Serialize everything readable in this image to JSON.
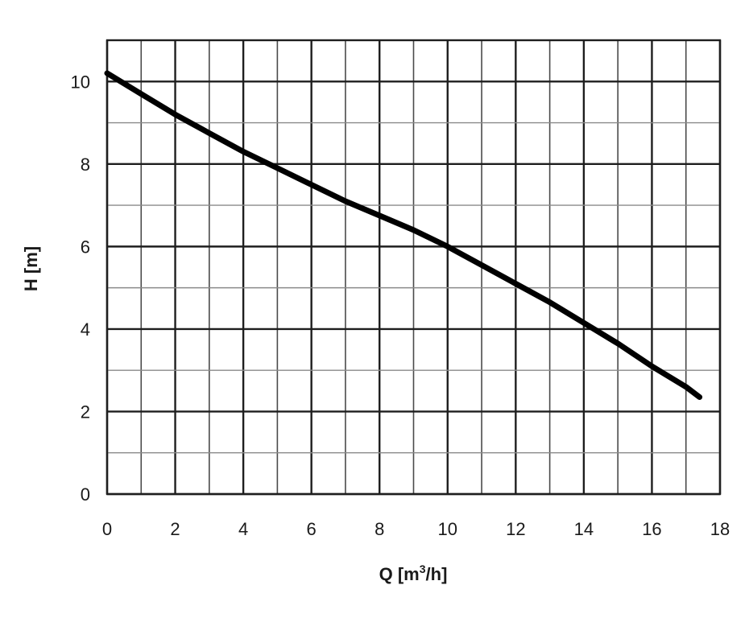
{
  "chart_data": {
    "type": "line",
    "xlabel": "Q [m",
    "xlabel_sup": "3",
    "xlabel_suffix": "/h]",
    "ylabel": "H [m]",
    "xlim": [
      0,
      18
    ],
    "ylim": [
      0,
      11
    ],
    "x_ticks": [
      0,
      2,
      4,
      6,
      8,
      10,
      12,
      14,
      16,
      18
    ],
    "y_ticks": [
      0,
      2,
      4,
      6,
      8,
      10
    ],
    "x_minor_step": 1,
    "y_minor_step": 1,
    "grid": true,
    "series": [
      {
        "x": [
          0,
          1,
          2,
          3,
          4,
          5,
          6,
          7,
          8,
          9,
          10,
          11,
          12,
          13,
          14,
          15,
          16,
          17,
          17.4
        ],
        "y": [
          10.2,
          9.7,
          9.2,
          8.75,
          8.3,
          7.9,
          7.5,
          7.1,
          6.75,
          6.4,
          6.0,
          5.55,
          5.1,
          4.65,
          4.15,
          3.65,
          3.1,
          2.6,
          2.35
        ],
        "color": "#000000"
      }
    ]
  }
}
